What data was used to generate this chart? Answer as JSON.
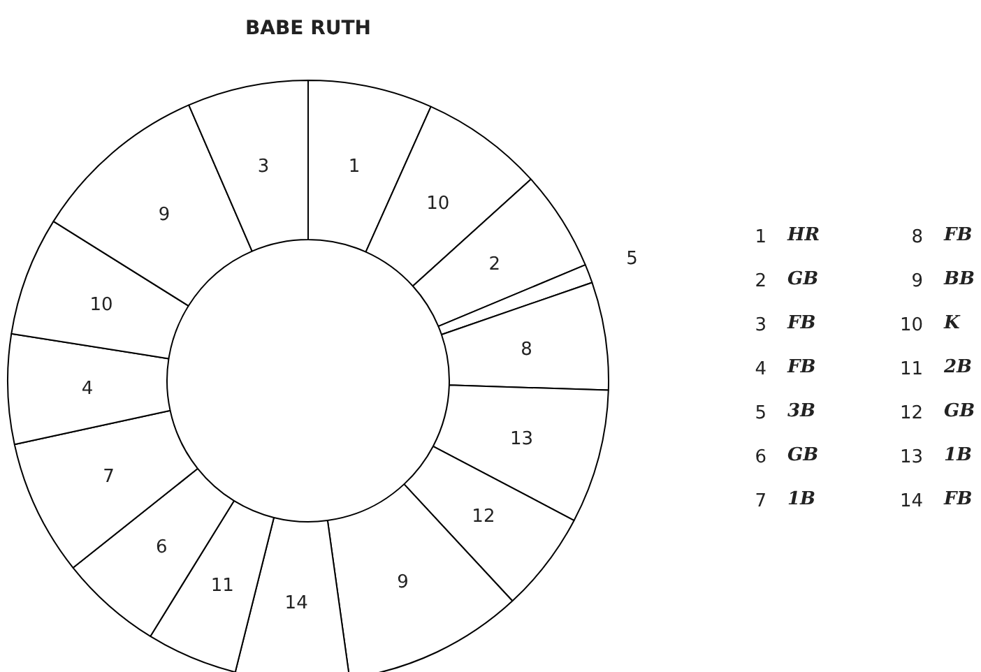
{
  "chart_data": {
    "type": "donut",
    "title": "BABE RUTH",
    "categories": [
      "1",
      "10",
      "2",
      "5",
      "8",
      "13",
      "12",
      "9",
      "14",
      "11",
      "6",
      "7",
      "4",
      "10",
      "9",
      "3"
    ],
    "values": [
      6.7,
      6.6,
      5.4,
      1.0,
      5.8,
      7.2,
      5.4,
      9.7,
      6.1,
      4.9,
      5.5,
      7.3,
      5.9,
      6.4,
      9.6,
      6.5
    ],
    "colors": [
      "#ffffff",
      "#ffffff",
      "#ffffff",
      "#ffffff",
      "#ffffff",
      "#ffffff",
      "#ffffff",
      "#ffffff",
      "#ffffff",
      "#ffffff",
      "#ffffff",
      "#ffffff",
      "#ffffff",
      "#ffffff",
      "#ffffff",
      "#ffffff"
    ],
    "annotations": [
      "1 HR",
      "2 GB",
      "3 FB",
      "4 FB",
      "5 3B",
      "6 GB",
      "7 1B",
      "8 FB",
      "9 BB",
      "10 K",
      "11 2B",
      "12 GB",
      "13 1B",
      "14 FB"
    ]
  }
}
